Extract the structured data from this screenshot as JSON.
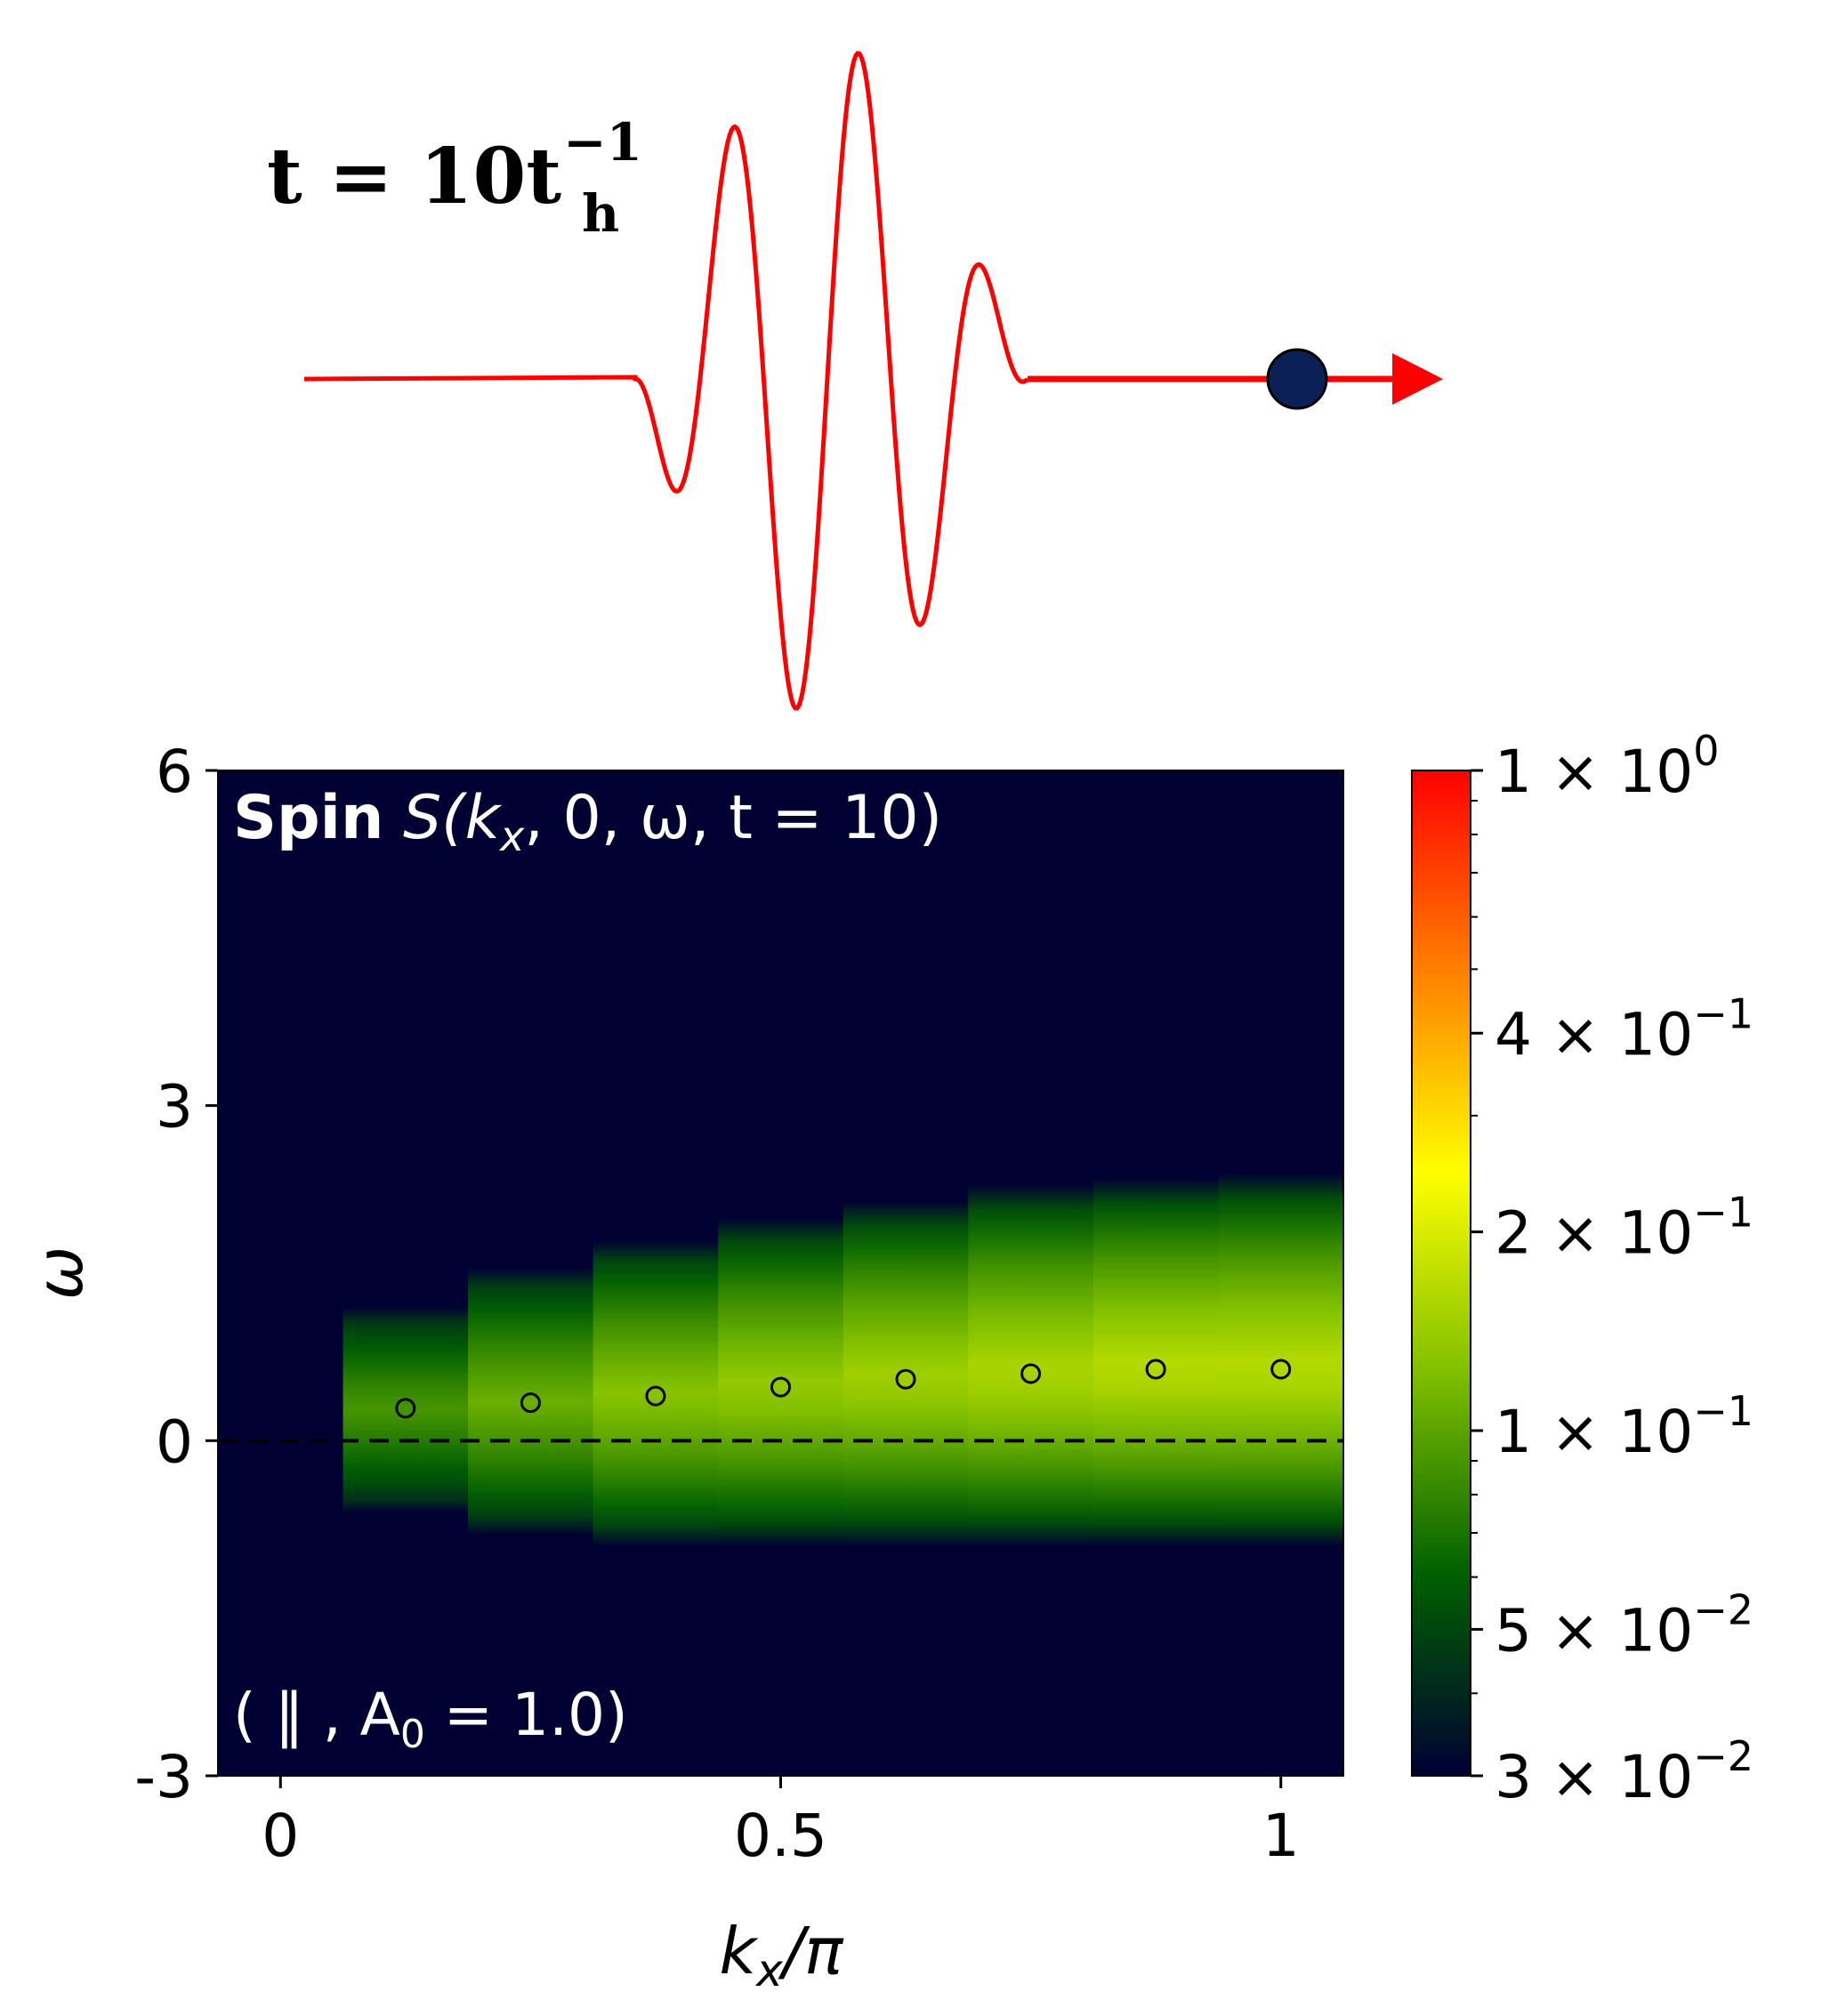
{
  "pulse": {
    "time_label": {
      "prefix": "t = 10t",
      "sub": "h",
      "sup": "−1"
    },
    "colors": {
      "wave": "#ff0000",
      "particle": "#0a2057"
    }
  },
  "chart_data": {
    "type": "heatmap",
    "title": {
      "bold": "Spin",
      "rest": " S(k",
      "sub": "x",
      "tail": ", 0, ω, t = 10)"
    },
    "annotation": {
      "pre": "( ‖ , A",
      "sub": "0",
      "post": " = 1.0)"
    },
    "xlabel": {
      "main": "k",
      "sub": "x",
      "post": "/π"
    },
    "ylabel": "ω",
    "xlim": [
      -0.0625,
      1.0625
    ],
    "ylim": [
      -3,
      6
    ],
    "x_ticks": [
      {
        "v": 0,
        "label": "0"
      },
      {
        "v": 0.5,
        "label": "0.5"
      },
      {
        "v": 1,
        "label": "1"
      }
    ],
    "y_ticks": [
      {
        "v": -3,
        "label": "-3"
      },
      {
        "v": 0,
        "label": "0"
      },
      {
        "v": 3,
        "label": "3"
      },
      {
        "v": 6,
        "label": "6"
      }
    ],
    "reference_line": {
      "y": 0,
      "style": "dashed"
    },
    "columns": [
      {
        "k": 0.0,
        "lo": 0,
        "hi": 0,
        "peak_omega": 0,
        "peak_value": 0.03
      },
      {
        "k": 0.125,
        "lo": -0.65,
        "hi": 1.2,
        "peak_omega": 0.29,
        "peak_value": 0.09
      },
      {
        "k": 0.25,
        "lo": -0.85,
        "hi": 1.55,
        "peak_omega": 0.34,
        "peak_value": 0.11
      },
      {
        "k": 0.375,
        "lo": -0.95,
        "hi": 1.8,
        "peak_omega": 0.4,
        "peak_value": 0.13
      },
      {
        "k": 0.5,
        "lo": -0.95,
        "hi": 2.0,
        "peak_omega": 0.48,
        "peak_value": 0.14
      },
      {
        "k": 0.625,
        "lo": -0.95,
        "hi": 2.15,
        "peak_omega": 0.55,
        "peak_value": 0.15
      },
      {
        "k": 0.75,
        "lo": -0.95,
        "hi": 2.3,
        "peak_omega": 0.6,
        "peak_value": 0.16
      },
      {
        "k": 0.875,
        "lo": -0.95,
        "hi": 2.35,
        "peak_omega": 0.64,
        "peak_value": 0.17
      },
      {
        "k": 1.0,
        "lo": -0.95,
        "hi": 2.4,
        "peak_omega": 0.64,
        "peak_value": 0.17
      }
    ],
    "colorbar": {
      "scale": "log",
      "range": [
        0.03,
        1.0
      ],
      "colors": [
        "#000033",
        "#006000",
        "#7fbf00",
        "#ffff00",
        "#ff8000",
        "#ff0000"
      ],
      "ticks": [
        {
          "v": 1.0,
          "m": "1",
          "e": "0"
        },
        {
          "v": 0.4,
          "m": "4",
          "e": "−1"
        },
        {
          "v": 0.2,
          "m": "2",
          "e": "−1"
        },
        {
          "v": 0.1,
          "m": "1",
          "e": "−1"
        },
        {
          "v": 0.05,
          "m": "5",
          "e": "−2"
        },
        {
          "v": 0.03,
          "m": "3",
          "e": "−2"
        }
      ]
    }
  }
}
